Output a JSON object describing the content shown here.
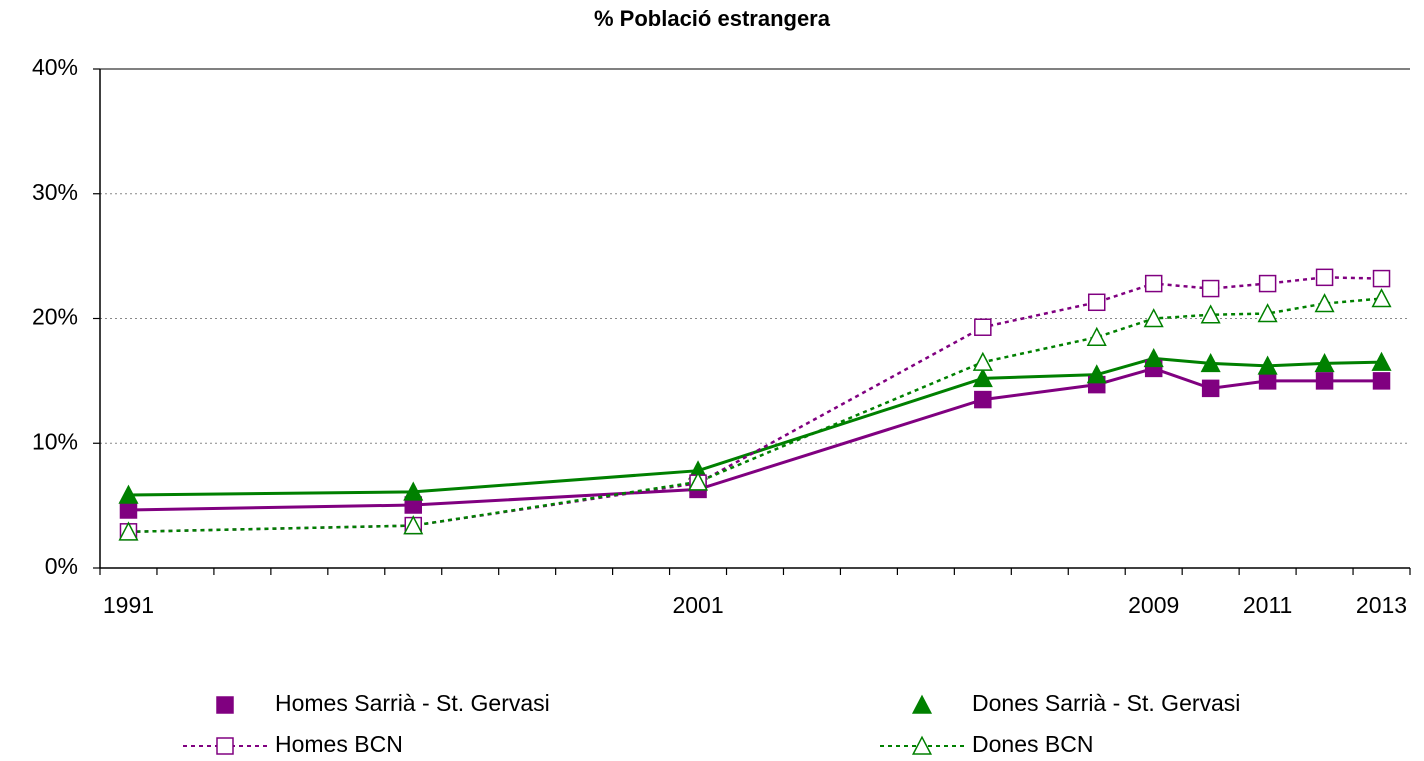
{
  "chart_data": {
    "type": "line",
    "title": "% Població estrangera",
    "x": [
      1991,
      1996,
      2001,
      2006,
      2008,
      2009,
      2010,
      2011,
      2012,
      2013
    ],
    "xlim": [
      1990.5,
      2013.5
    ],
    "xticks": [
      1991,
      2001,
      2009,
      2011,
      2013
    ],
    "ylim": [
      0,
      40
    ],
    "yticks": [
      {
        "value": 0,
        "label": "0%"
      },
      {
        "value": 10,
        "label": "10%"
      },
      {
        "value": 20,
        "label": "20%"
      },
      {
        "value": 30,
        "label": "30%"
      },
      {
        "value": 40,
        "label": "40%"
      }
    ],
    "grid": true,
    "legend": "bottom",
    "series": [
      {
        "name": "Homes Sarrià - St. Gervasi",
        "color": "#800080",
        "marker": "square",
        "filled": true,
        "line_style": "solid",
        "values": [
          4.65,
          5.05,
          6.3,
          13.5,
          14.7,
          16.0,
          14.4,
          15.0,
          15.0,
          15.0
        ]
      },
      {
        "name": "Dones Sarrià - St. Gervasi",
        "color": "#008000",
        "marker": "triangle",
        "filled": true,
        "line_style": "solid",
        "values": [
          5.85,
          6.1,
          7.8,
          15.2,
          15.5,
          16.8,
          16.4,
          16.2,
          16.4,
          16.5
        ]
      },
      {
        "name": "Homes BCN",
        "color": "#800080",
        "marker": "square",
        "filled": false,
        "line_style": "dotted",
        "values": [
          2.9,
          3.4,
          6.8,
          19.3,
          21.3,
          22.8,
          22.4,
          22.8,
          23.3,
          23.2
        ]
      },
      {
        "name": "Dones BCN",
        "color": "#008000",
        "marker": "triangle",
        "filled": false,
        "line_style": "dotted",
        "values": [
          2.9,
          3.4,
          6.9,
          16.5,
          18.5,
          20.0,
          20.3,
          20.4,
          21.2,
          21.6
        ]
      }
    ]
  }
}
